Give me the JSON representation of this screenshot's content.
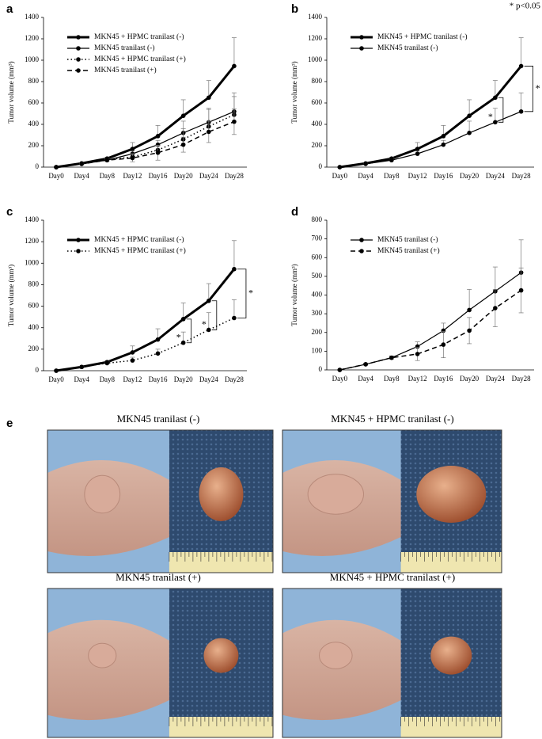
{
  "chart_data": [
    {
      "type": "line",
      "panel": "a",
      "y_label": "Tumor volume (mm³)",
      "categories": [
        "Day0",
        "Day4",
        "Day8",
        "Day12",
        "Day16",
        "Day20",
        "Day24",
        "Day28"
      ],
      "ylim": [
        0,
        1400
      ],
      "yticks": [
        0,
        200,
        400,
        600,
        800,
        1000,
        1200,
        1400
      ],
      "series": [
        {
          "name": "MKN45 + HPMC tranilast (-)",
          "color": "#000000",
          "line_width": 3,
          "line_style": "solid",
          "values": [
            0,
            35,
            80,
            170,
            290,
            480,
            650,
            945
          ],
          "errors": [
            0,
            5,
            10,
            60,
            100,
            150,
            160,
            265
          ],
          "error_direction": "up"
        },
        {
          "name": "MKN45 tranilast (-)",
          "color": "#000000",
          "line_width": 1.2,
          "line_style": "solid",
          "values": [
            0,
            30,
            65,
            125,
            210,
            320,
            420,
            520
          ],
          "errors": [
            0,
            5,
            10,
            25,
            40,
            110,
            130,
            175
          ],
          "error_direction": "up"
        },
        {
          "name": "MKN45 + HPMC tranilast (+)",
          "color": "#000000",
          "line_width": 1.5,
          "line_style": "dotted",
          "values": [
            0,
            35,
            70,
            95,
            160,
            260,
            380,
            490
          ],
          "errors": [
            0,
            5,
            10,
            30,
            40,
            100,
            160,
            170
          ],
          "error_direction": "up"
        },
        {
          "name": "MKN45 tranilast (+)",
          "color": "#000000",
          "line_width": 1.5,
          "line_style": "dashed",
          "values": [
            0,
            30,
            65,
            85,
            135,
            210,
            330,
            425
          ],
          "errors": [
            0,
            5,
            8,
            35,
            70,
            70,
            100,
            120
          ],
          "error_direction": "both"
        }
      ]
    },
    {
      "type": "line",
      "panel": "b",
      "y_label": "Tumor volume (mm³)",
      "note": "* p<0.05",
      "categories": [
        "Day0",
        "Day4",
        "Day8",
        "Day12",
        "Day16",
        "Day20",
        "Day24",
        "Day28"
      ],
      "ylim": [
        0,
        1400
      ],
      "yticks": [
        0,
        200,
        400,
        600,
        800,
        1000,
        1200,
        1400
      ],
      "series": [
        {
          "name": "MKN45 + HPMC tranilast (-)",
          "color": "#000000",
          "line_width": 3,
          "line_style": "solid",
          "values": [
            0,
            35,
            80,
            170,
            290,
            480,
            650,
            945
          ],
          "errors": [
            0,
            5,
            10,
            60,
            100,
            150,
            160,
            265
          ],
          "error_direction": "up"
        },
        {
          "name": "MKN45 tranilast (-)",
          "color": "#000000",
          "line_width": 1.2,
          "line_style": "solid",
          "values": [
            0,
            30,
            65,
            125,
            210,
            320,
            420,
            520
          ],
          "errors": [
            0,
            5,
            10,
            25,
            40,
            110,
            130,
            175
          ],
          "error_direction": "up"
        }
      ],
      "significance": [
        "*",
        "*"
      ]
    },
    {
      "type": "line",
      "panel": "c",
      "y_label": "Tumor volume (mm³)",
      "categories": [
        "Day0",
        "Day4",
        "Day8",
        "Day12",
        "Day16",
        "Day20",
        "Day24",
        "Day28"
      ],
      "ylim": [
        0,
        1400
      ],
      "yticks": [
        0,
        200,
        400,
        600,
        800,
        1000,
        1200,
        1400
      ],
      "series": [
        {
          "name": "MKN45 + HPMC tranilast (-)",
          "color": "#000000",
          "line_width": 3,
          "line_style": "solid",
          "values": [
            0,
            35,
            80,
            170,
            290,
            480,
            650,
            945
          ],
          "errors": [
            0,
            5,
            10,
            60,
            100,
            150,
            160,
            265
          ],
          "error_direction": "up"
        },
        {
          "name": "MKN45 + HPMC tranilast (+)",
          "color": "#000000",
          "line_width": 1.5,
          "line_style": "dotted",
          "values": [
            0,
            35,
            70,
            95,
            160,
            260,
            380,
            490
          ],
          "errors": [
            0,
            5,
            10,
            30,
            40,
            100,
            160,
            170
          ],
          "error_direction": "up"
        }
      ],
      "significance": [
        "*",
        "*",
        "*"
      ]
    },
    {
      "type": "line",
      "panel": "d",
      "y_label": "Tumor volume (mm³)",
      "categories": [
        "Day0",
        "Day4",
        "Day8",
        "Day12",
        "Day16",
        "Day20",
        "Day24",
        "Day28"
      ],
      "ylim": [
        0,
        800
      ],
      "yticks": [
        0,
        100,
        200,
        300,
        400,
        500,
        600,
        700,
        800
      ],
      "series": [
        {
          "name": "MKN45 tranilast (-)",
          "color": "#000000",
          "line_width": 1.2,
          "line_style": "solid",
          "values": [
            0,
            30,
            65,
            125,
            210,
            320,
            420,
            520
          ],
          "errors": [
            0,
            5,
            10,
            25,
            40,
            110,
            130,
            175
          ],
          "error_direction": "up"
        },
        {
          "name": "MKN45 tranilast (+)",
          "color": "#000000",
          "line_width": 1.5,
          "line_style": "dashed",
          "values": [
            0,
            30,
            65,
            85,
            135,
            210,
            330,
            425
          ],
          "errors": [
            0,
            5,
            8,
            35,
            70,
            70,
            100,
            120
          ],
          "error_direction": "both"
        }
      ]
    }
  ],
  "photos": {
    "panel": "e",
    "captions": [
      "MKN45 tranilast (-)",
      "MKN45 + HPMC tranilast (-)",
      "MKN45 tranilast (+)",
      "MKN45 + HPMC tranilast (+)"
    ]
  }
}
